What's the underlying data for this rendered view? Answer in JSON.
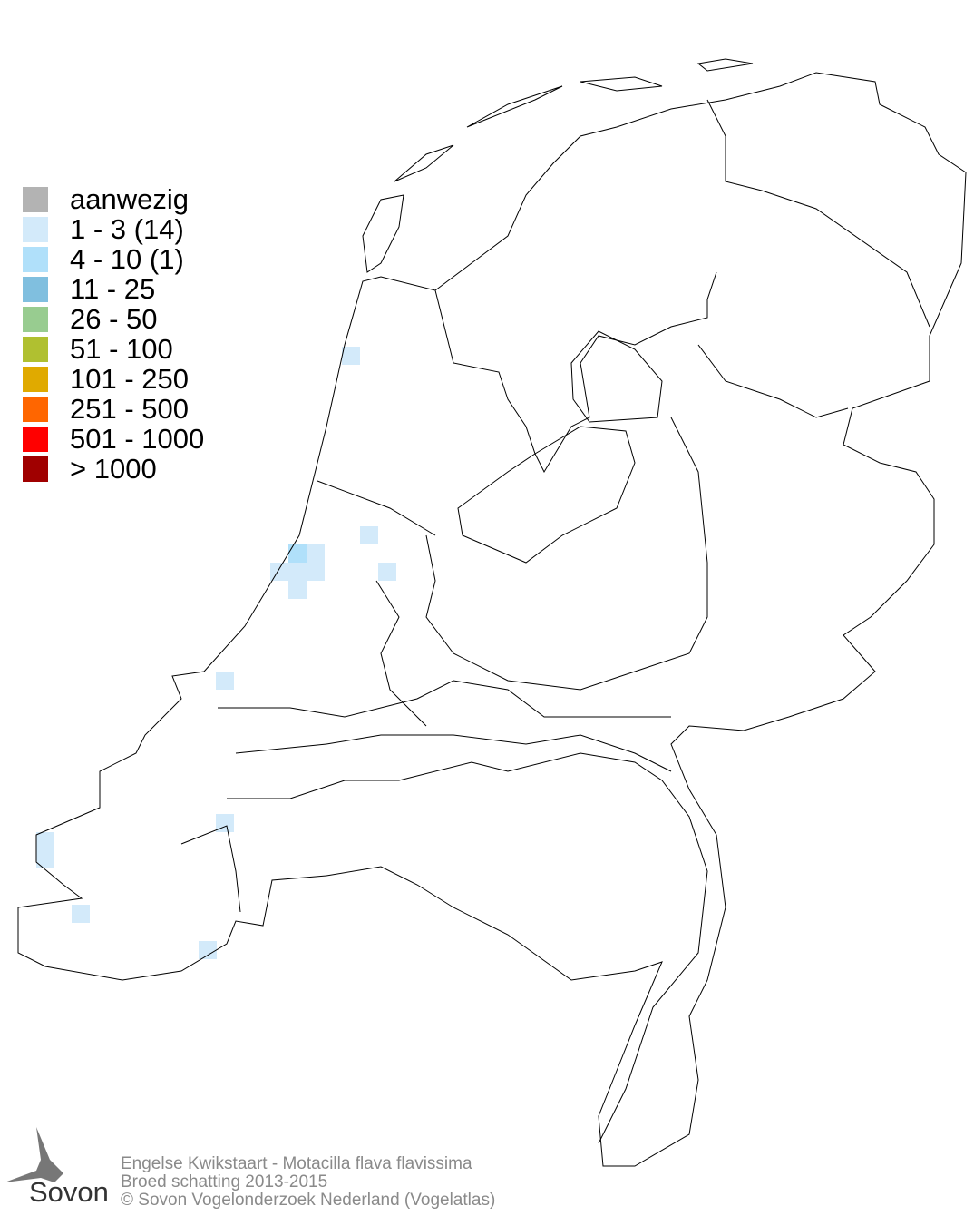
{
  "legend": [
    {
      "label": "aanwezig",
      "color": "#b3b3b3"
    },
    {
      "label": "1 - 3 (14)",
      "color": "#d3eafa"
    },
    {
      "label": "4 - 10 (1)",
      "color": "#b0e0fa"
    },
    {
      "label": "11 - 25",
      "color": "#80bfdf"
    },
    {
      "label": "26 - 50",
      "color": "#98cc90"
    },
    {
      "label": "51 - 100",
      "color": "#b0c030"
    },
    {
      "label": "101 - 250",
      "color": "#e0aa00"
    },
    {
      "label": "251 - 500",
      "color": "#ff6600"
    },
    {
      "label": "501 - 1000",
      "color": "#ff0000"
    },
    {
      "label": "> 1000",
      "color": "#a00000"
    }
  ],
  "footer": {
    "species": "Engelse Kwikstaart - Motacilla flava flavissima",
    "subtitle": "Broed schatting 2013-2015",
    "copyright": "© Sovon Vogelonderzoek Nederland (Vogelatlas)"
  },
  "logo": {
    "text": "Sovon"
  }
}
